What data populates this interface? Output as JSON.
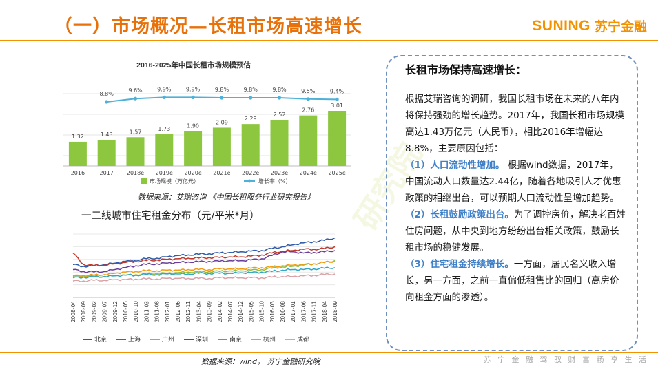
{
  "slide": {
    "title": "（一）市场概况—长租市场高速增长",
    "logo_en": "SUNING",
    "logo_cn": "苏宁金融",
    "footer_slogan": "苏 宁 金 融   驾 驭 财 富   畅 享 生 活"
  },
  "charts": {
    "bar_source": "数据来源：艾瑞咨询 《中国长租服务行业研究报告》",
    "line_source": "数据来源：wind，  苏宁金融研究院"
  },
  "chart_data": [
    {
      "type": "bar",
      "title": "2016-2025年中国长租市场规模预估",
      "categories": [
        "2016",
        "2017",
        "2018e",
        "2019e",
        "2020e",
        "2021e",
        "2022e",
        "2023e",
        "2024e",
        "2025e"
      ],
      "series": [
        {
          "name": "市场规模（万亿元）",
          "values": [
            1.32,
            1.43,
            1.57,
            1.73,
            1.9,
            2.09,
            2.29,
            2.52,
            2.76,
            3.01
          ],
          "color": "#8dc63f"
        },
        {
          "name": "增长率（%）",
          "values": [
            null,
            8.8,
            9.6,
            9.9,
            9.9,
            9.8,
            9.8,
            9.8,
            9.5,
            9.4
          ],
          "labels": [
            "",
            "8.8%",
            "9.6%",
            "9.9%",
            "9.9%",
            "9.8%",
            "9.8%",
            "9.8%",
            "9.5%",
            "9.4%"
          ],
          "color": "#4fb0d8"
        }
      ],
      "grid": true,
      "legend": "bottom"
    },
    {
      "type": "line",
      "title": "一二线城市住宅租金分布（元/平米*月）",
      "ylim": [
        0,
        100
      ],
      "yticks": [
        "0.00",
        "20.00",
        "40.00",
        "60.00",
        "80.00",
        "100.00"
      ],
      "x": [
        "2008-04",
        "2008-09",
        "2009-02",
        "2009-07",
        "2009-12",
        "2010-05",
        "2010-10",
        "2011-03",
        "2011-08",
        "2012-01",
        "2012-06",
        "2012-11",
        "2013-04",
        "2013-09",
        "2014-02",
        "2014-07",
        "2014-12",
        "2015-05",
        "2015-10",
        "2016-03",
        "2016-08",
        "2017-01",
        "2017-06",
        "2017-11",
        "2018-04",
        "2018-09"
      ],
      "series": [
        {
          "name": "北京",
          "color": "#2e5aa8",
          "values": [
            52,
            49,
            50,
            52,
            54,
            57,
            59,
            61,
            62,
            64,
            66,
            67,
            68,
            69,
            70,
            71,
            72,
            73,
            74,
            77,
            80,
            83,
            86,
            88,
            90,
            94
          ]
        },
        {
          "name": "上海",
          "color": "#c0392b",
          "values": [
            70,
            52,
            50,
            51,
            53,
            55,
            57,
            58,
            59,
            60,
            61,
            62,
            62,
            63,
            63,
            64,
            64,
            65,
            67,
            70,
            73,
            74,
            76,
            76,
            77,
            80
          ]
        },
        {
          "name": "广州",
          "color": "#8cbd3f",
          "values": [
            33,
            34,
            33,
            33,
            34,
            35,
            36,
            37,
            38,
            38,
            39,
            40,
            40,
            41,
            41,
            42,
            42,
            43,
            44,
            46,
            48,
            49,
            51,
            53,
            55,
            58
          ]
        },
        {
          "name": "深圳",
          "color": "#6a3d9a",
          "values": [
            44,
            41,
            40,
            41,
            44,
            47,
            50,
            52,
            53,
            54,
            55,
            56,
            56,
            57,
            57,
            58,
            58,
            59,
            61,
            66,
            72,
            72,
            70,
            71,
            72,
            74
          ]
        },
        {
          "name": "南京",
          "color": "#2ea8c6",
          "values": [
            31,
            32,
            32,
            33,
            34,
            35,
            35,
            36,
            36,
            37,
            37,
            37,
            38,
            38,
            38,
            38,
            39,
            39,
            40,
            41,
            43,
            44,
            44,
            45,
            46,
            47
          ]
        },
        {
          "name": "杭州",
          "color": "#f39c12",
          "values": [
            34,
            35,
            35,
            36,
            38,
            40,
            41,
            42,
            42,
            43,
            43,
            44,
            44,
            44,
            45,
            45,
            45,
            46,
            47,
            48,
            50,
            51,
            52,
            53,
            55,
            57
          ]
        },
        {
          "name": "成都",
          "color": "#d9a0a6",
          "values": [
            26,
            26,
            27,
            27,
            28,
            28,
            29,
            29,
            29,
            30,
            30,
            30,
            30,
            30,
            31,
            31,
            31,
            31,
            31,
            32,
            33,
            33,
            34,
            35,
            36,
            37
          ]
        }
      ],
      "legend": "bottom"
    }
  ],
  "card": {
    "heading": "长租市场保持高速增长：",
    "intro": "根据艾瑞咨询的调研，我国长租市场在未来的八年内将保持强劲的增长趋势。2017年，我国长租市场规模高达1.43万亿元（人民币），相比2016年增幅达8.8%，主要原因包括：",
    "p1_title": "（1）人口流动性增加。",
    "p1_text": "根据wind数据，2017年，中国流动人口数量达2.44亿，随着各地吸引人才优惠政策的相继出台，可以预期人口流动性呈增加趋势。",
    "p2_title": "（2）长租鼓励政策出台。",
    "p2_text": "为了调控房价，解决老百姓住房问题，从中央到地方纷纷出台相关政策，鼓励长租市场的稳健发展。",
    "p3_title": "（3）住宅租金持续增长。",
    "p3_text": "一方面，居民名义收入增长，另一方面，之前一直偏低租售比的回归（高房价向租金方面的渗透）。"
  }
}
